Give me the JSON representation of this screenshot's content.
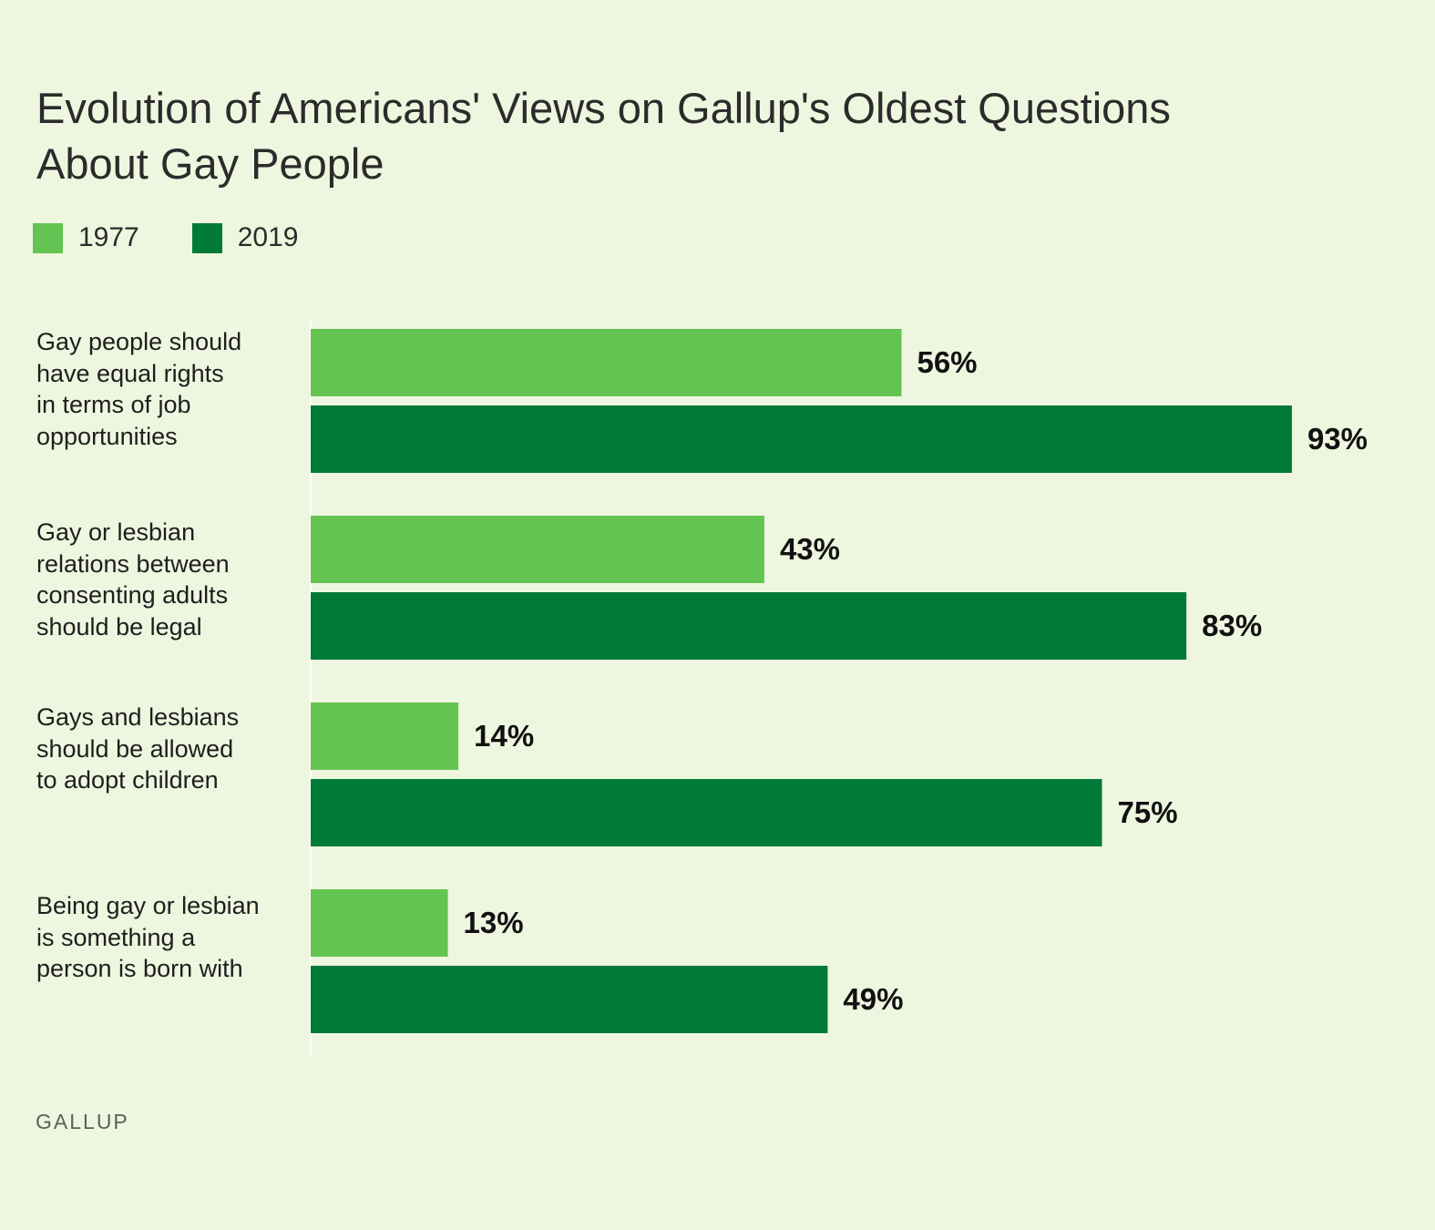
{
  "title": "Evolution of Americans' Views on Gallup's Oldest Questions About Gay People",
  "legend": [
    {
      "label": "1977",
      "color": "#63c451"
    },
    {
      "label": "2019",
      "color": "#007a37"
    }
  ],
  "source": "GALLUP",
  "chart_data": {
    "type": "bar",
    "orientation": "horizontal",
    "categories": [
      "Gay people should have equal rights in terms of job opportunities",
      "Gay or lesbian relations between consenting adults should be legal",
      "Gays and lesbians should be allowed to adopt children",
      "Being gay or lesbian is something a person is born with"
    ],
    "category_lines": [
      [
        "Gay people should",
        "have equal rights",
        "in terms of job",
        "opportunities"
      ],
      [
        "Gay or lesbian",
        "relations between",
        "consenting adults",
        "should be legal"
      ],
      [
        "Gays and lesbians",
        "should be allowed",
        "to adopt children"
      ],
      [
        "Being gay or lesbian",
        "is something a",
        "person is born with"
      ]
    ],
    "series": [
      {
        "name": "1977",
        "color": "#63c451",
        "values": [
          56,
          43,
          14,
          13
        ],
        "labels": [
          "56%",
          "43%",
          "14%",
          "13%"
        ]
      },
      {
        "name": "2019",
        "color": "#007a37",
        "values": [
          93,
          83,
          75,
          49
        ],
        "labels": [
          "93%",
          "83%",
          "75%",
          "49%"
        ]
      }
    ],
    "xlim": [
      0,
      100
    ],
    "grid": false,
    "legend_position": "top-left"
  }
}
